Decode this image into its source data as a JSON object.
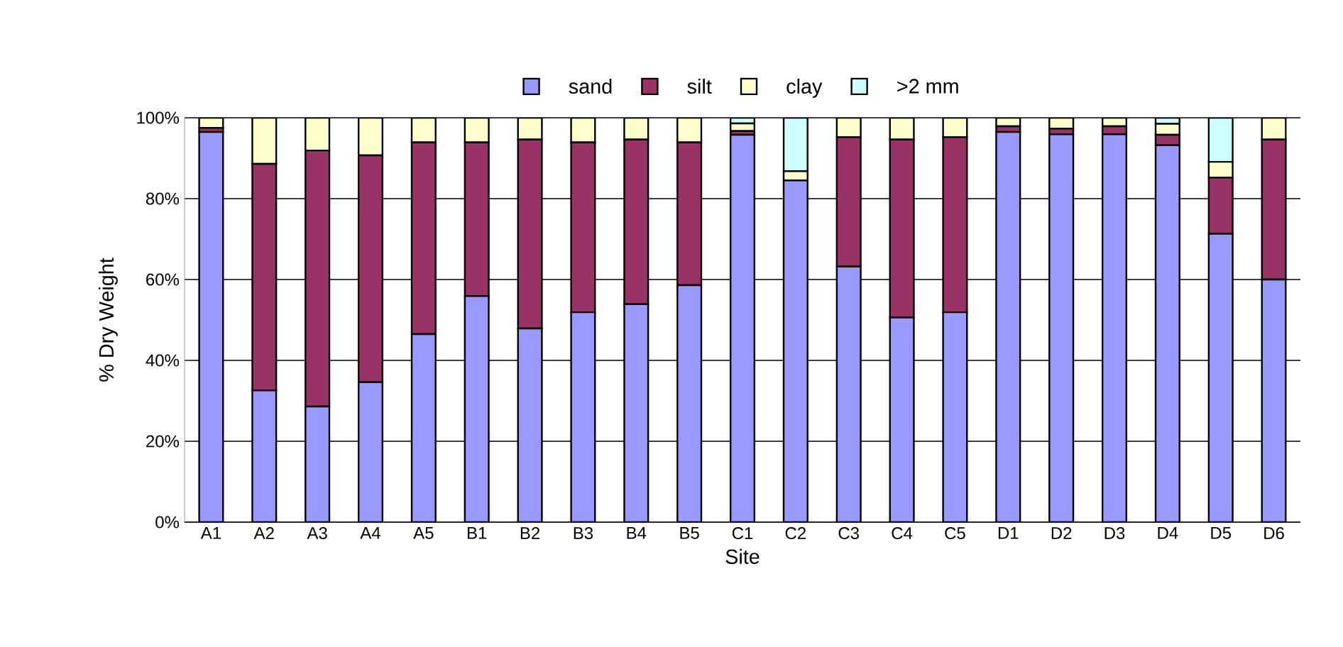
{
  "chart_data": {
    "type": "bar",
    "stacked": true,
    "xlabel": "Site",
    "ylabel": "% Dry Weight",
    "categories": [
      "A1",
      "A2",
      "A3",
      "A4",
      "A5",
      "B1",
      "B2",
      "B3",
      "B4",
      "B5",
      "C1",
      "C2",
      "C3",
      "C4",
      "C5",
      "D1",
      "D2",
      "D3",
      "D4",
      "D5",
      "D6"
    ],
    "series": [
      {
        "name": "sand",
        "color": "#9999ff",
        "values": [
          96.5,
          32.6,
          28.6,
          34.6,
          46.5,
          55.9,
          47.9,
          51.9,
          53.9,
          58.6,
          95.8,
          84.5,
          63.2,
          50.6,
          51.9,
          96.5,
          95.9,
          95.9,
          93.2,
          71.3,
          60.0
        ]
      },
      {
        "name": "silt",
        "color": "#993366",
        "values": [
          1.0,
          56.0,
          63.3,
          56.1,
          47.4,
          38.0,
          46.7,
          42.0,
          40.7,
          35.3,
          0.9,
          0,
          32.0,
          44.0,
          43.3,
          1.4,
          1.4,
          2.0,
          2.6,
          13.9,
          34.6
        ]
      },
      {
        "name": "clay",
        "color": "#ffffcc",
        "values": [
          2.5,
          11.4,
          8.1,
          9.3,
          6.1,
          6.1,
          5.4,
          6.1,
          5.4,
          6.1,
          1.9,
          2.3,
          4.8,
          5.4,
          4.8,
          2.1,
          2.7,
          2.1,
          2.7,
          3.9,
          5.4
        ]
      },
      {
        "name": ">2 mm",
        "color": "#ccffff",
        "values": [
          0,
          0,
          0,
          0,
          0,
          0,
          0,
          0,
          0,
          0,
          1.4,
          13.2,
          0,
          0,
          0,
          0,
          0,
          0,
          1.5,
          10.9,
          0
        ]
      }
    ],
    "ylim": [
      0,
      100
    ],
    "yticks": [
      {
        "value": 0,
        "label": "0%"
      },
      {
        "value": 20,
        "label": "20%"
      },
      {
        "value": 40,
        "label": "40%"
      },
      {
        "value": 60,
        "label": "60%"
      },
      {
        "value": 80,
        "label": "80%"
      },
      {
        "value": 100,
        "label": "100%"
      }
    ],
    "grid": "y",
    "legend": "top"
  }
}
